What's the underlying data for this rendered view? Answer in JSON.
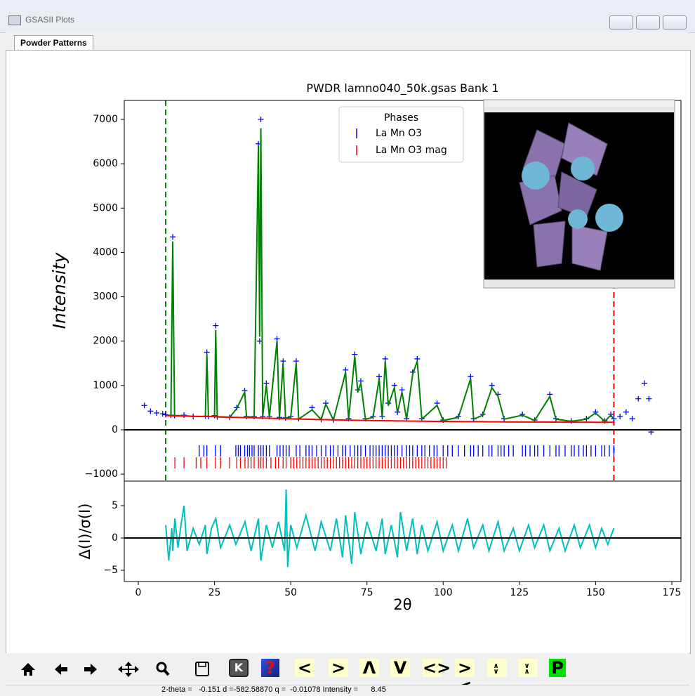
{
  "window": {
    "title": "GSASII Plots",
    "tab": "Powder Patterns"
  },
  "toolbar": {
    "buttons": [
      "K",
      "?",
      "<",
      ">",
      "Λ",
      "V",
      "<>",
      "><",
      "∧∨",
      "∨∧",
      "P"
    ]
  },
  "status": "2-theta =   -0.151 d =-582.58870 q =  -0.01078 Intensity =      8.45",
  "chart_data": [
    {
      "type": "line",
      "title": "PWDR lamno040_50k.gsas Bank 1",
      "ylabel": "Intensity",
      "xlim": [
        -4.6,
        178
      ],
      "ylim": [
        -1157,
        7428
      ],
      "yticks": [
        {
          "value": -1000,
          "label": "−1000"
        },
        0,
        1000,
        2000,
        3000,
        4000,
        5000,
        6000,
        7000
      ],
      "zero_line": true,
      "legend": "upper center",
      "legend_title": "Phases",
      "vlines": [
        {
          "x": 9,
          "color": "#008000"
        },
        {
          "x": 156,
          "color": "#ff0000"
        }
      ],
      "x": [
        2,
        4,
        6,
        8,
        9,
        10.7,
        11.3,
        11.9,
        15,
        18,
        22,
        22.5,
        23,
        25,
        25.4,
        25.9,
        30,
        32.3,
        34.9,
        35.5,
        38,
        39.4,
        39.8,
        40.2,
        40.8,
        42,
        43,
        45.5,
        46.3,
        47.5,
        48.3,
        50,
        51.8,
        52.6,
        57,
        60,
        61.5,
        64,
        68,
        69,
        71,
        72,
        73,
        74.5,
        77,
        79,
        80,
        81,
        82,
        84,
        85,
        86.5,
        88,
        90,
        91.5,
        93,
        98,
        100,
        105,
        109,
        110,
        113,
        116,
        118,
        120,
        126,
        130,
        135,
        137,
        142,
        147,
        150,
        153,
        155,
        156,
        158,
        160,
        162,
        164,
        166,
        167.5,
        168.2
      ],
      "series": [
        {
          "color": "#0000ff",
          "marker": "+",
          "values": [
            550,
            420,
            380,
            360,
            340,
            330,
            4350,
            320,
            330,
            300,
            310,
            1750,
            300,
            320,
            2350,
            290,
            280,
            500,
            880,
            300,
            300,
            6450,
            2000,
            7000,
            300,
            1050,
            300,
            2050,
            280,
            1550,
            270,
            300,
            1550,
            250,
            500,
            230,
            600,
            220,
            1350,
            250,
            1700,
            900,
            1100,
            250,
            300,
            1200,
            300,
            1600,
            600,
            1000,
            400,
            900,
            250,
            1300,
            1600,
            250,
            600,
            220,
            300,
            1200,
            250,
            350,
            1000,
            800,
            250,
            350,
            220,
            800,
            250,
            200,
            250,
            400,
            200,
            350,
            250,
            300,
            400,
            250,
            700,
            1050,
            700,
            -50
          ]
        },
        {
          "color": "#008000",
          "values": [
            null,
            null,
            null,
            null,
            320,
            330,
            4250,
            320,
            320,
            300,
            300,
            1700,
            300,
            300,
            2250,
            290,
            280,
            480,
            850,
            290,
            290,
            6400,
            2100,
            6800,
            300,
            1000,
            290,
            2000,
            270,
            1500,
            260,
            290,
            1500,
            240,
            450,
            230,
            580,
            220,
            1300,
            240,
            1650,
            850,
            1050,
            240,
            280,
            1150,
            280,
            1550,
            550,
            950,
            380,
            850,
            240,
            1250,
            1550,
            240,
            550,
            210,
            280,
            1150,
            240,
            330,
            950,
            750,
            240,
            330,
            210,
            750,
            240,
            190,
            240,
            380,
            190,
            330,
            240,
            null,
            null,
            null,
            null,
            null,
            null,
            null
          ]
        },
        {
          "color": "#ff0000",
          "values": [
            null,
            null,
            null,
            null,
            320,
            318,
            316,
            315,
            310,
            305,
            300,
            300,
            299,
            298,
            297,
            296,
            285,
            280,
            275,
            274,
            270,
            268,
            267,
            266,
            265,
            262,
            260,
            255,
            254,
            252,
            250,
            246,
            243,
            242,
            235,
            230,
            228,
            224,
            220,
            218,
            215,
            214,
            213,
            211,
            208,
            206,
            205,
            204,
            203,
            201,
            200,
            199,
            198,
            196,
            195,
            194,
            190,
            189,
            186,
            184,
            183,
            182,
            180,
            179,
            178,
            176,
            175,
            174,
            173,
            172,
            171,
            170,
            170,
            170,
            170,
            null,
            null,
            null,
            null,
            null,
            null,
            null
          ]
        }
      ],
      "reflections": [
        {
          "name": "La Mn O3",
          "color": "#0000ff",
          "y": -476,
          "positions": [
            20,
            21.5,
            22.5,
            25.3,
            27,
            32,
            32.8,
            33.5,
            34.9,
            35.8,
            36.5,
            37.3,
            38,
            39.4,
            40.2,
            41,
            42,
            43,
            45.5,
            46.5,
            47.5,
            48.5,
            49.5,
            51.8,
            53,
            55,
            56,
            57,
            58.5,
            60,
            61.5,
            63,
            64,
            65.5,
            67,
            68,
            69.5,
            71,
            72,
            73,
            74.5,
            76,
            77,
            78,
            79,
            80,
            81,
            82,
            83,
            84,
            85,
            86.5,
            88,
            89,
            90,
            91.5,
            93,
            94,
            95.5,
            97,
            98,
            100,
            101.5,
            103,
            105,
            107,
            109,
            110,
            111.5,
            113,
            115,
            116,
            118,
            119,
            120,
            121.5,
            123,
            126,
            127,
            128.5,
            130,
            131,
            133,
            135,
            137,
            138,
            140,
            142,
            143,
            144.5,
            146,
            147,
            148.5,
            150,
            152,
            153,
            154.5,
            156
          ]
        },
        {
          "name": "La Mn O3 mag",
          "color": "#ff0000",
          "y": -745,
          "positions": [
            12,
            15,
            19,
            20.5,
            22.5,
            25.3,
            27,
            30,
            32.3,
            33.5,
            35,
            36,
            37,
            38,
            39.4,
            40.2,
            41,
            42,
            43.5,
            45,
            46,
            47.5,
            48.5,
            50,
            51,
            52,
            53,
            54,
            55,
            56,
            57,
            58,
            59,
            60,
            61,
            62,
            63,
            64,
            65,
            66,
            67,
            68,
            69,
            70,
            71,
            72,
            73,
            74,
            75,
            76,
            77,
            78,
            79,
            80,
            81,
            82,
            83,
            84,
            85,
            86,
            87,
            88,
            89,
            90,
            91,
            92,
            93,
            94,
            95,
            96,
            97,
            98,
            99,
            100,
            101
          ]
        }
      ]
    },
    {
      "type": "line",
      "ylabel": "Δ(I)/σ(I)",
      "xlabel": "2θ",
      "xlim": [
        -4.6,
        178
      ],
      "xticks": [
        0,
        25,
        50,
        75,
        100,
        125,
        150,
        175
      ],
      "ylim": [
        -6.74,
        8.8
      ],
      "yticks": [
        {
          "value": -5,
          "label": "−5"
        },
        0,
        5
      ],
      "zero_line": true,
      "x": [
        9,
        10,
        11,
        11.3,
        12,
        13,
        14,
        15,
        16,
        18,
        20,
        22,
        22.5,
        24,
        25.4,
        27,
        30,
        32,
        35,
        37,
        39.4,
        40.2,
        42,
        44,
        46,
        48,
        48.5,
        49,
        50,
        52,
        55,
        58,
        60,
        63,
        65,
        67,
        68,
        70,
        71,
        73,
        75,
        78,
        80,
        81,
        83,
        85,
        86,
        88,
        90,
        91.5,
        93,
        95,
        98,
        100,
        103,
        105,
        108,
        110,
        113,
        115,
        118,
        120,
        123,
        125,
        128,
        130,
        133,
        135,
        138,
        140,
        143,
        145,
        148,
        150,
        152,
        154,
        156
      ],
      "series": [
        {
          "color": "#00bfbf",
          "values": [
            2,
            -3.5,
            1.5,
            -2,
            3,
            -1.5,
            2,
            5,
            -2,
            1.5,
            -1,
            2,
            -2.5,
            1.5,
            3,
            -1.5,
            2,
            -1,
            2.5,
            -2,
            3,
            -3.5,
            2,
            -1.5,
            2.5,
            -2,
            7.5,
            -4.5,
            2,
            -1.5,
            3.5,
            -2,
            2.5,
            -2,
            3,
            -3,
            3.5,
            -4,
            4,
            -2.5,
            2.5,
            -2,
            3,
            -2.5,
            2,
            -3,
            4,
            -2,
            3,
            -2.5,
            2,
            -2,
            2.5,
            -2,
            2,
            -2,
            3,
            -1.5,
            2,
            -2,
            2.5,
            -2,
            1.5,
            -2,
            2,
            -1.5,
            2,
            -2,
            1.5,
            -2,
            2,
            -1.5,
            2,
            -1.5,
            1.5,
            -1,
            1.5
          ]
        }
      ]
    }
  ]
}
